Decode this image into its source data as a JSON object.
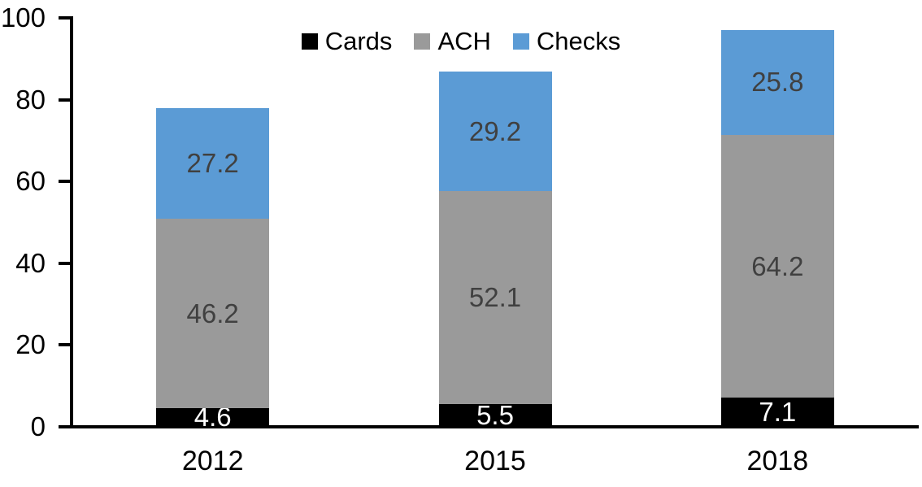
{
  "chart_data": {
    "type": "bar",
    "stacked": true,
    "title": "",
    "xlabel": "",
    "ylabel": "",
    "categories": [
      "2012",
      "2015",
      "2018"
    ],
    "series": [
      {
        "name": "Cards",
        "values": [
          4.6,
          5.5,
          7.1
        ],
        "color": "#000000",
        "label_color": "#ffffff"
      },
      {
        "name": "ACH",
        "values": [
          46.2,
          52.1,
          64.2
        ],
        "color": "#9a9a9a",
        "label_color": "#404040"
      },
      {
        "name": "Checks",
        "values": [
          27.2,
          29.2,
          25.8
        ],
        "color": "#5b9bd5",
        "label_color": "#404040"
      }
    ],
    "ylim": [
      0,
      100
    ],
    "yticks": [
      0,
      20,
      40,
      60,
      80,
      100
    ],
    "grid": false,
    "data_labels": "inside-center",
    "legend": {
      "position": "top-center",
      "entries": [
        "Cards",
        "ACH",
        "Checks"
      ]
    },
    "axis_color": "#000000",
    "background": "#ffffff"
  }
}
